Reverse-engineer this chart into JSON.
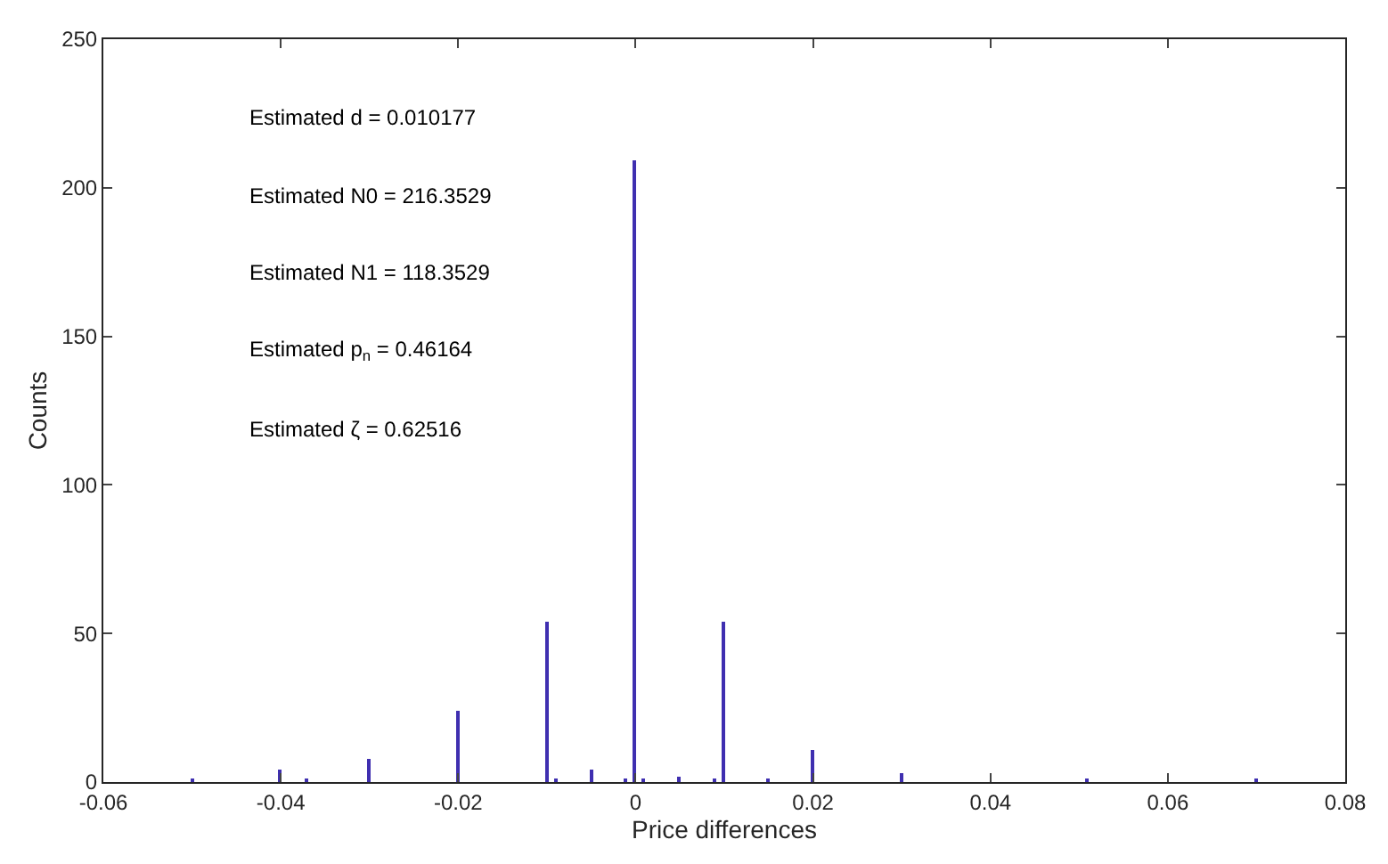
{
  "chart_data": {
    "type": "bar",
    "xlabel": "Price differences",
    "ylabel": "Counts",
    "x": [
      -0.05,
      -0.04,
      -0.037,
      -0.03,
      -0.02,
      -0.01,
      -0.009,
      -0.005,
      -0.001,
      0,
      0.001,
      0.005,
      0.009,
      0.01,
      0.015,
      0.02,
      0.03,
      0.051,
      0.07
    ],
    "values": [
      1,
      4,
      1,
      8,
      24,
      54,
      1,
      4,
      1,
      209,
      1,
      2,
      1,
      54,
      1,
      11,
      3,
      1,
      1
    ],
    "color": "#3f2fb0",
    "xlim": [
      -0.06,
      0.08
    ],
    "xticks": [
      -0.06,
      -0.04,
      -0.02,
      0,
      0.02,
      0.04,
      0.06,
      0.08
    ],
    "ylim": [
      0,
      250
    ],
    "yticks": [
      0,
      50,
      100,
      150,
      200,
      250
    ],
    "annotations": [
      "Estimated d = 0.010177",
      "Estimated N0 = 216.3529",
      "Estimated N1 = 118.3529",
      "Estimated p$_{n}$ = 0.46164",
      "Estimated ζ = 0.62516"
    ]
  }
}
